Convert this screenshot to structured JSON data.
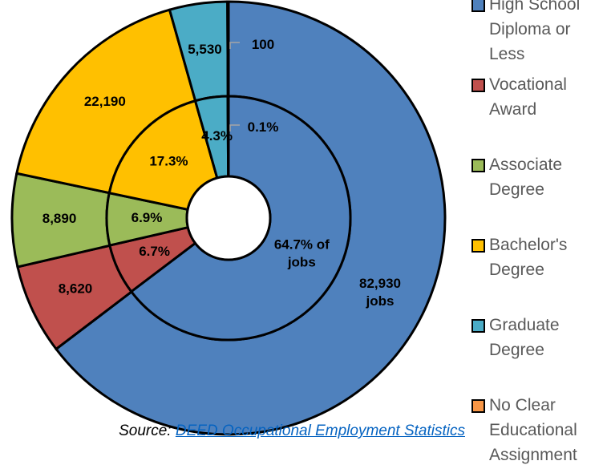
{
  "chart_data": {
    "type": "donut",
    "categories": [
      "High School Diploma or Less",
      "Vocational Award",
      "Associate Degree",
      "Bachelor's Degree",
      "Graduate Degree",
      "No Clear Educational Assignment"
    ],
    "colors": [
      "#4f81bd",
      "#c0504d",
      "#9bbb59",
      "#ffc000",
      "#4bacc6",
      "#f79646"
    ],
    "series": [
      {
        "values": [
          82930,
          8620,
          8890,
          22190,
          5530,
          100
        ],
        "value_labels": [
          "82,930 jobs",
          "8,620",
          "8,890",
          "22,190",
          "5,530",
          "100"
        ]
      },
      {
        "values": [
          64.7,
          6.7,
          6.9,
          17.3,
          4.3,
          0.1
        ],
        "value_labels": [
          "64.7% of jobs",
          "6.7%",
          "6.9%",
          "17.3%",
          "4.3%",
          "0.1%"
        ]
      }
    ],
    "source": "Source:",
    "source_link": "DEED Occupational Employment Statistics"
  }
}
